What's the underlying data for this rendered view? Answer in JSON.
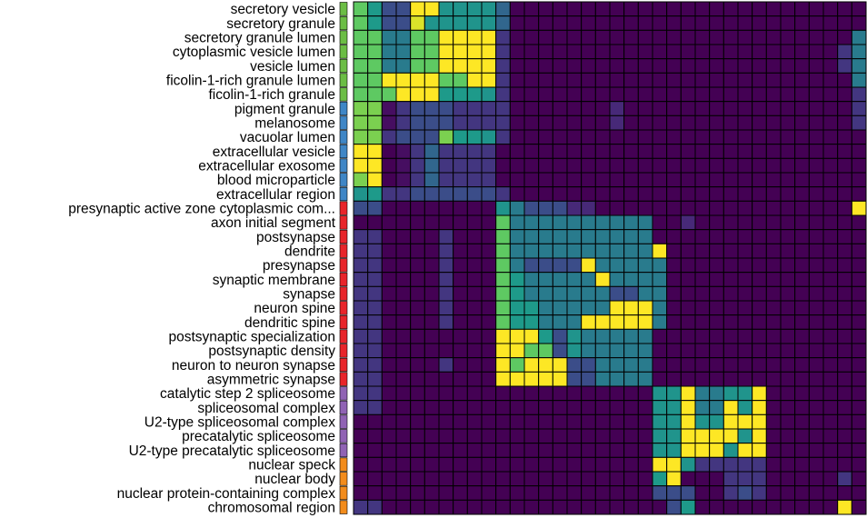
{
  "chart_data": {
    "type": "heatmap",
    "row_labels": [
      "secretory vesicle",
      "secretory granule",
      "secretory granule lumen",
      "cytoplasmic vesicle lumen",
      "vesicle lumen",
      "ficolin-1-rich granule lumen",
      "ficolin-1-rich granule",
      "pigment granule",
      "melanosome",
      "vacuolar lumen",
      "extracellular vesicle",
      "extracellular exosome",
      "blood microparticle",
      "extracellular region",
      "presynaptic active zone cytoplasmic com...",
      "axon initial segment",
      "postsynapse",
      "dendrite",
      "presynapse",
      "synaptic membrane",
      "synapse",
      "neuron spine",
      "dendritic spine",
      "postsynaptic specialization",
      "postsynaptic density",
      "neuron to neuron synapse",
      "asymmetric synapse",
      "catalytic step 2 spliceosome",
      "spliceosomal complex",
      "U2-type spliceosomal complex",
      "precatalytic spliceosome",
      "U2-type precatalytic spliceosome",
      "nuclear speck",
      "nuclear body",
      "nuclear protein-containing complex",
      "chromosomal region"
    ],
    "row_cluster_colors": [
      "#6bbd45",
      "#6bbd45",
      "#6bbd45",
      "#6bbd45",
      "#6bbd45",
      "#6bbd45",
      "#6bbd45",
      "#3f86c6",
      "#3f86c6",
      "#3f86c6",
      "#3f86c6",
      "#3f86c6",
      "#3f86c6",
      "#3f86c6",
      "#e8252a",
      "#e8252a",
      "#e8252a",
      "#e8252a",
      "#e8252a",
      "#e8252a",
      "#e8252a",
      "#e8252a",
      "#e8252a",
      "#e8252a",
      "#e8252a",
      "#e8252a",
      "#e8252a",
      "#9063b4",
      "#9063b4",
      "#9063b4",
      "#9063b4",
      "#9063b4",
      "#f28c1c",
      "#f28c1c",
      "#f28c1c",
      "#f28c1c"
    ],
    "colormap": "viridis",
    "value_range": [
      0,
      1
    ],
    "legend": "none",
    "matrix": [
      [
        0.75,
        0.62,
        0.3,
        0.3,
        1.0,
        1.0,
        0.55,
        0.55,
        0.55,
        0.55,
        0.4,
        0.0,
        0.0,
        0.0,
        0.0,
        0.0,
        0.0,
        0.0,
        0.0,
        0.0,
        0.0,
        0.0,
        0.0,
        0.0,
        0.0,
        0.0,
        0.0,
        0.0,
        0.0,
        0.0,
        0.0,
        0.0,
        0.0,
        0.0,
        0.0,
        0.0
      ],
      [
        0.75,
        0.62,
        0.3,
        0.3,
        0.95,
        0.55,
        0.55,
        0.55,
        0.55,
        0.55,
        0.4,
        0.0,
        0.0,
        0.0,
        0.0,
        0.0,
        0.0,
        0.0,
        0.0,
        0.0,
        0.0,
        0.0,
        0.0,
        0.0,
        0.0,
        0.0,
        0.0,
        0.0,
        0.0,
        0.0,
        0.0,
        0.0,
        0.0,
        0.0,
        0.0,
        0.0
      ],
      [
        0.75,
        0.75,
        0.45,
        0.45,
        0.75,
        0.75,
        1.0,
        1.0,
        1.0,
        1.0,
        0.2,
        0.0,
        0.0,
        0.0,
        0.0,
        0.0,
        0.0,
        0.0,
        0.0,
        0.0,
        0.0,
        0.0,
        0.0,
        0.0,
        0.0,
        0.0,
        0.0,
        0.0,
        0.0,
        0.0,
        0.0,
        0.0,
        0.0,
        0.0,
        0.0,
        0.45
      ],
      [
        0.75,
        0.75,
        0.45,
        0.45,
        0.75,
        0.75,
        1.0,
        1.0,
        1.0,
        1.0,
        0.2,
        0.0,
        0.0,
        0.0,
        0.0,
        0.0,
        0.0,
        0.0,
        0.0,
        0.0,
        0.0,
        0.0,
        0.0,
        0.0,
        0.0,
        0.0,
        0.0,
        0.0,
        0.0,
        0.0,
        0.0,
        0.0,
        0.0,
        0.0,
        0.2,
        0.45
      ],
      [
        0.75,
        0.75,
        0.45,
        0.45,
        0.75,
        0.75,
        1.0,
        1.0,
        1.0,
        1.0,
        0.2,
        0.0,
        0.0,
        0.0,
        0.0,
        0.0,
        0.0,
        0.0,
        0.0,
        0.0,
        0.0,
        0.0,
        0.0,
        0.0,
        0.0,
        0.0,
        0.0,
        0.0,
        0.0,
        0.0,
        0.0,
        0.0,
        0.0,
        0.0,
        0.2,
        0.45
      ],
      [
        0.75,
        0.75,
        1.0,
        1.0,
        1.0,
        1.0,
        0.75,
        0.75,
        1.0,
        1.0,
        0.2,
        0.0,
        0.0,
        0.0,
        0.0,
        0.0,
        0.0,
        0.0,
        0.0,
        0.0,
        0.0,
        0.0,
        0.0,
        0.0,
        0.0,
        0.0,
        0.0,
        0.0,
        0.0,
        0.0,
        0.0,
        0.0,
        0.0,
        0.0,
        0.0,
        0.45
      ],
      [
        0.75,
        0.75,
        0.75,
        1.0,
        1.0,
        1.0,
        0.62,
        0.62,
        0.62,
        0.55,
        0.2,
        0.0,
        0.0,
        0.0,
        0.0,
        0.0,
        0.0,
        0.0,
        0.0,
        0.0,
        0.0,
        0.0,
        0.0,
        0.0,
        0.0,
        0.0,
        0.0,
        0.0,
        0.0,
        0.0,
        0.0,
        0.0,
        0.0,
        0.0,
        0.0,
        0.2
      ],
      [
        0.8,
        0.8,
        0.05,
        0.2,
        0.3,
        0.3,
        0.3,
        0.2,
        0.2,
        0.2,
        0.2,
        0.0,
        0.0,
        0.0,
        0.0,
        0.0,
        0.0,
        0.0,
        0.15,
        0.0,
        0.0,
        0.0,
        0.0,
        0.0,
        0.0,
        0.0,
        0.0,
        0.0,
        0.0,
        0.0,
        0.0,
        0.0,
        0.0,
        0.0,
        0.0,
        0.2
      ],
      [
        0.8,
        0.8,
        0.05,
        0.2,
        0.3,
        0.3,
        0.3,
        0.2,
        0.2,
        0.2,
        0.2,
        0.0,
        0.0,
        0.0,
        0.0,
        0.0,
        0.0,
        0.0,
        0.15,
        0.0,
        0.0,
        0.0,
        0.0,
        0.0,
        0.0,
        0.0,
        0.0,
        0.0,
        0.0,
        0.0,
        0.0,
        0.0,
        0.0,
        0.0,
        0.0,
        0.2
      ],
      [
        0.8,
        0.8,
        0.2,
        0.3,
        0.3,
        0.3,
        0.8,
        0.62,
        0.62,
        0.55,
        0.2,
        0.0,
        0.0,
        0.0,
        0.0,
        0.0,
        0.0,
        0.0,
        0.0,
        0.0,
        0.0,
        0.0,
        0.0,
        0.0,
        0.0,
        0.0,
        0.0,
        0.0,
        0.0,
        0.0,
        0.0,
        0.0,
        0.0,
        0.0,
        0.0,
        0.0
      ],
      [
        1.0,
        1.0,
        0.0,
        0.05,
        0.2,
        0.4,
        0.2,
        0.2,
        0.2,
        0.2,
        0.0,
        0.0,
        0.0,
        0.0,
        0.0,
        0.0,
        0.0,
        0.0,
        0.0,
        0.0,
        0.0,
        0.0,
        0.0,
        0.0,
        0.0,
        0.0,
        0.0,
        0.0,
        0.0,
        0.0,
        0.0,
        0.0,
        0.0,
        0.0,
        0.0,
        0.0
      ],
      [
        1.0,
        1.0,
        0.0,
        0.05,
        0.2,
        0.4,
        0.2,
        0.2,
        0.2,
        0.2,
        0.0,
        0.0,
        0.0,
        0.0,
        0.0,
        0.0,
        0.0,
        0.0,
        0.0,
        0.0,
        0.0,
        0.0,
        0.0,
        0.0,
        0.0,
        0.0,
        0.0,
        0.0,
        0.0,
        0.0,
        0.0,
        0.0,
        0.0,
        0.0,
        0.0,
        0.0
      ],
      [
        0.8,
        1.0,
        0.0,
        0.05,
        0.2,
        0.4,
        0.2,
        0.2,
        0.2,
        0.2,
        0.0,
        0.0,
        0.0,
        0.0,
        0.0,
        0.0,
        0.0,
        0.0,
        0.0,
        0.0,
        0.0,
        0.0,
        0.0,
        0.0,
        0.0,
        0.0,
        0.0,
        0.0,
        0.0,
        0.0,
        0.0,
        0.0,
        0.0,
        0.0,
        0.0,
        0.0
      ],
      [
        0.55,
        0.62,
        0.2,
        0.2,
        0.3,
        0.3,
        0.3,
        0.3,
        0.3,
        0.3,
        0.2,
        0.0,
        0.0,
        0.0,
        0.0,
        0.0,
        0.0,
        0.0,
        0.0,
        0.0,
        0.0,
        0.0,
        0.0,
        0.0,
        0.0,
        0.0,
        0.0,
        0.0,
        0.0,
        0.0,
        0.0,
        0.0,
        0.0,
        0.0,
        0.0,
        0.0
      ],
      [
        0.3,
        0.3,
        0.0,
        0.0,
        0.0,
        0.0,
        0.0,
        0.0,
        0.0,
        0.0,
        0.55,
        0.45,
        0.3,
        0.3,
        0.3,
        0.15,
        0.15,
        0.0,
        0.0,
        0.0,
        0.0,
        0.0,
        0.0,
        0.0,
        0.0,
        0.0,
        0.0,
        0.0,
        0.0,
        0.0,
        0.0,
        0.0,
        0.0,
        0.0,
        0.0,
        1.0
      ],
      [
        0.0,
        0.0,
        0.0,
        0.0,
        0.0,
        0.0,
        0.0,
        0.0,
        0.0,
        0.0,
        0.75,
        0.45,
        0.45,
        0.45,
        0.45,
        0.45,
        0.45,
        0.45,
        0.45,
        0.45,
        0.45,
        0.0,
        0.0,
        0.15,
        0.0,
        0.0,
        0.0,
        0.0,
        0.0,
        0.0,
        0.0,
        0.0,
        0.0,
        0.0,
        0.0,
        0.0
      ],
      [
        0.2,
        0.2,
        0.0,
        0.0,
        0.0,
        0.0,
        0.2,
        0.0,
        0.0,
        0.0,
        0.75,
        0.45,
        0.45,
        0.45,
        0.45,
        0.45,
        0.45,
        0.45,
        0.45,
        0.45,
        0.45,
        0.0,
        0.0,
        0.0,
        0.0,
        0.0,
        0.0,
        0.0,
        0.0,
        0.0,
        0.0,
        0.0,
        0.0,
        0.0,
        0.0,
        0.0
      ],
      [
        0.2,
        0.2,
        0.0,
        0.0,
        0.0,
        0.0,
        0.2,
        0.0,
        0.0,
        0.0,
        0.75,
        0.45,
        0.45,
        0.45,
        0.45,
        0.45,
        0.45,
        0.45,
        0.45,
        0.45,
        0.45,
        1.0,
        0.0,
        0.0,
        0.0,
        0.0,
        0.0,
        0.0,
        0.0,
        0.0,
        0.0,
        0.0,
        0.0,
        0.0,
        0.0,
        0.0
      ],
      [
        0.2,
        0.2,
        0.0,
        0.0,
        0.0,
        0.0,
        0.2,
        0.0,
        0.0,
        0.0,
        0.75,
        0.45,
        0.3,
        0.3,
        0.3,
        0.3,
        1.0,
        0.45,
        0.45,
        0.45,
        0.45,
        0.45,
        0.0,
        0.0,
        0.0,
        0.0,
        0.0,
        0.0,
        0.0,
        0.0,
        0.0,
        0.0,
        0.0,
        0.0,
        0.0,
        0.0
      ],
      [
        0.2,
        0.2,
        0.0,
        0.0,
        0.0,
        0.0,
        0.2,
        0.0,
        0.0,
        0.0,
        0.75,
        0.62,
        0.45,
        0.45,
        0.45,
        0.45,
        0.45,
        1.0,
        0.45,
        0.45,
        0.45,
        0.45,
        0.0,
        0.0,
        0.0,
        0.0,
        0.0,
        0.0,
        0.0,
        0.0,
        0.0,
        0.0,
        0.0,
        0.0,
        0.0,
        0.0
      ],
      [
        0.2,
        0.2,
        0.0,
        0.0,
        0.0,
        0.0,
        0.2,
        0.0,
        0.0,
        0.0,
        0.75,
        0.62,
        0.45,
        0.45,
        0.45,
        0.45,
        0.45,
        0.45,
        0.3,
        0.3,
        0.45,
        0.45,
        0.0,
        0.0,
        0.0,
        0.0,
        0.0,
        0.0,
        0.0,
        0.0,
        0.0,
        0.0,
        0.0,
        0.0,
        0.0,
        0.0
      ],
      [
        0.2,
        0.2,
        0.0,
        0.0,
        0.0,
        0.0,
        0.2,
        0.0,
        0.0,
        0.0,
        0.75,
        0.62,
        0.62,
        0.45,
        0.45,
        0.45,
        0.45,
        0.45,
        1.0,
        1.0,
        1.0,
        0.45,
        0.0,
        0.0,
        0.0,
        0.0,
        0.0,
        0.0,
        0.0,
        0.0,
        0.0,
        0.0,
        0.0,
        0.0,
        0.0,
        0.0
      ],
      [
        0.2,
        0.2,
        0.0,
        0.0,
        0.0,
        0.0,
        0.2,
        0.0,
        0.0,
        0.0,
        0.75,
        0.62,
        0.62,
        0.45,
        0.45,
        0.45,
        1.0,
        1.0,
        1.0,
        1.0,
        1.0,
        0.45,
        0.0,
        0.0,
        0.0,
        0.0,
        0.0,
        0.0,
        0.0,
        0.0,
        0.0,
        0.0,
        0.0,
        0.0,
        0.0,
        0.0
      ],
      [
        0.2,
        0.2,
        0.0,
        0.0,
        0.0,
        0.0,
        0.0,
        0.0,
        0.0,
        0.0,
        1.0,
        1.0,
        1.0,
        0.62,
        0.3,
        0.55,
        0.45,
        0.45,
        0.45,
        0.45,
        0.45,
        0.0,
        0.0,
        0.0,
        0.0,
        0.0,
        0.0,
        0.0,
        0.0,
        0.0,
        0.0,
        0.0,
        0.0,
        0.0,
        0.0,
        0.0
      ],
      [
        0.2,
        0.2,
        0.0,
        0.0,
        0.0,
        0.0,
        0.0,
        0.0,
        0.0,
        0.0,
        1.0,
        1.0,
        0.75,
        0.75,
        0.3,
        0.55,
        0.45,
        0.45,
        0.45,
        0.45,
        0.45,
        0.0,
        0.0,
        0.0,
        0.0,
        0.0,
        0.0,
        0.0,
        0.0,
        0.0,
        0.0,
        0.0,
        0.0,
        0.0,
        0.0,
        0.0
      ],
      [
        0.2,
        0.2,
        0.0,
        0.0,
        0.0,
        0.0,
        0.2,
        0.0,
        0.0,
        0.0,
        1.0,
        0.75,
        1.0,
        1.0,
        1.0,
        0.3,
        0.3,
        0.45,
        0.45,
        0.45,
        0.45,
        0.0,
        0.0,
        0.0,
        0.0,
        0.0,
        0.0,
        0.0,
        0.0,
        0.0,
        0.0,
        0.0,
        0.0,
        0.0,
        0.0,
        0.0
      ],
      [
        0.2,
        0.2,
        0.0,
        0.0,
        0.0,
        0.0,
        0.0,
        0.0,
        0.0,
        0.0,
        1.0,
        1.0,
        1.0,
        1.0,
        1.0,
        0.3,
        0.3,
        0.45,
        0.45,
        0.45,
        0.45,
        0.0,
        0.0,
        0.0,
        0.0,
        0.0,
        0.0,
        0.0,
        0.0,
        0.0,
        0.0,
        0.0,
        0.0,
        0.0,
        0.0,
        0.0
      ],
      [
        0.2,
        0.2,
        0.0,
        0.0,
        0.0,
        0.0,
        0.0,
        0.0,
        0.0,
        0.0,
        0.0,
        0.0,
        0.0,
        0.0,
        0.0,
        0.0,
        0.0,
        0.0,
        0.0,
        0.0,
        0.0,
        0.55,
        0.55,
        1.0,
        0.45,
        0.45,
        0.55,
        0.55,
        1.0,
        0.0,
        0.0,
        0.0,
        0.0,
        0.0,
        0.0,
        0.0
      ],
      [
        0.2,
        0.2,
        0.0,
        0.0,
        0.0,
        0.0,
        0.0,
        0.0,
        0.0,
        0.0,
        0.0,
        0.0,
        0.0,
        0.0,
        0.0,
        0.0,
        0.0,
        0.0,
        0.0,
        0.0,
        0.0,
        0.55,
        0.55,
        1.0,
        0.45,
        0.45,
        1.0,
        0.55,
        1.0,
        0.0,
        0.0,
        0.0,
        0.0,
        0.0,
        0.0,
        0.0
      ],
      [
        0.0,
        0.0,
        0.0,
        0.0,
        0.0,
        0.0,
        0.0,
        0.0,
        0.0,
        0.0,
        0.0,
        0.0,
        0.0,
        0.0,
        0.0,
        0.0,
        0.0,
        0.0,
        0.0,
        0.0,
        0.0,
        0.55,
        0.55,
        1.0,
        0.55,
        0.55,
        1.0,
        1.0,
        1.0,
        0.0,
        0.0,
        0.0,
        0.0,
        0.0,
        0.0,
        0.0
      ],
      [
        0.0,
        0.0,
        0.0,
        0.0,
        0.0,
        0.0,
        0.0,
        0.0,
        0.0,
        0.0,
        0.0,
        0.0,
        0.0,
        0.0,
        0.0,
        0.0,
        0.0,
        0.0,
        0.0,
        0.0,
        0.0,
        0.55,
        0.55,
        1.0,
        1.0,
        1.0,
        1.0,
        0.55,
        1.0,
        0.0,
        0.0,
        0.0,
        0.0,
        0.0,
        0.0,
        0.0
      ],
      [
        0.0,
        0.0,
        0.0,
        0.0,
        0.0,
        0.0,
        0.0,
        0.0,
        0.0,
        0.0,
        0.0,
        0.0,
        0.0,
        0.0,
        0.0,
        0.0,
        0.0,
        0.0,
        0.0,
        0.0,
        0.0,
        0.55,
        0.55,
        1.0,
        1.0,
        1.0,
        0.55,
        1.0,
        1.0,
        0.0,
        0.0,
        0.0,
        0.0,
        0.0,
        0.0,
        0.0
      ],
      [
        0.0,
        0.0,
        0.0,
        0.0,
        0.0,
        0.0,
        0.0,
        0.0,
        0.0,
        0.0,
        0.0,
        0.0,
        0.0,
        0.0,
        0.0,
        0.0,
        0.0,
        0.0,
        0.0,
        0.0,
        0.0,
        1.0,
        1.0,
        0.55,
        0.2,
        0.2,
        0.2,
        0.2,
        0.2,
        0.0,
        0.0,
        0.0,
        0.0,
        0.0,
        0.0,
        0.0
      ],
      [
        0.0,
        0.0,
        0.0,
        0.0,
        0.0,
        0.0,
        0.0,
        0.0,
        0.0,
        0.0,
        0.0,
        0.0,
        0.0,
        0.0,
        0.0,
        0.0,
        0.0,
        0.0,
        0.0,
        0.0,
        0.0,
        0.62,
        1.0,
        0.0,
        0.0,
        0.0,
        0.2,
        0.2,
        0.2,
        0.0,
        0.0,
        0.0,
        0.0,
        0.0,
        0.2,
        0.0
      ],
      [
        0.0,
        0.0,
        0.0,
        0.0,
        0.0,
        0.0,
        0.0,
        0.0,
        0.0,
        0.0,
        0.0,
        0.0,
        0.0,
        0.0,
        0.0,
        0.0,
        0.0,
        0.0,
        0.0,
        0.0,
        0.0,
        0.3,
        0.3,
        0.3,
        0.0,
        0.0,
        0.2,
        0.3,
        0.2,
        0.0,
        0.0,
        0.0,
        0.0,
        0.0,
        0.0,
        0.0
      ],
      [
        0.2,
        0.2,
        0.0,
        0.0,
        0.0,
        0.0,
        0.0,
        0.0,
        0.0,
        0.0,
        0.0,
        0.0,
        0.0,
        0.0,
        0.0,
        0.0,
        0.0,
        0.0,
        0.0,
        0.0,
        0.0,
        0.0,
        0.3,
        0.62,
        0.0,
        0.0,
        0.0,
        0.0,
        0.0,
        0.0,
        0.0,
        0.0,
        0.0,
        0.0,
        1.0,
        0.0
      ]
    ]
  }
}
